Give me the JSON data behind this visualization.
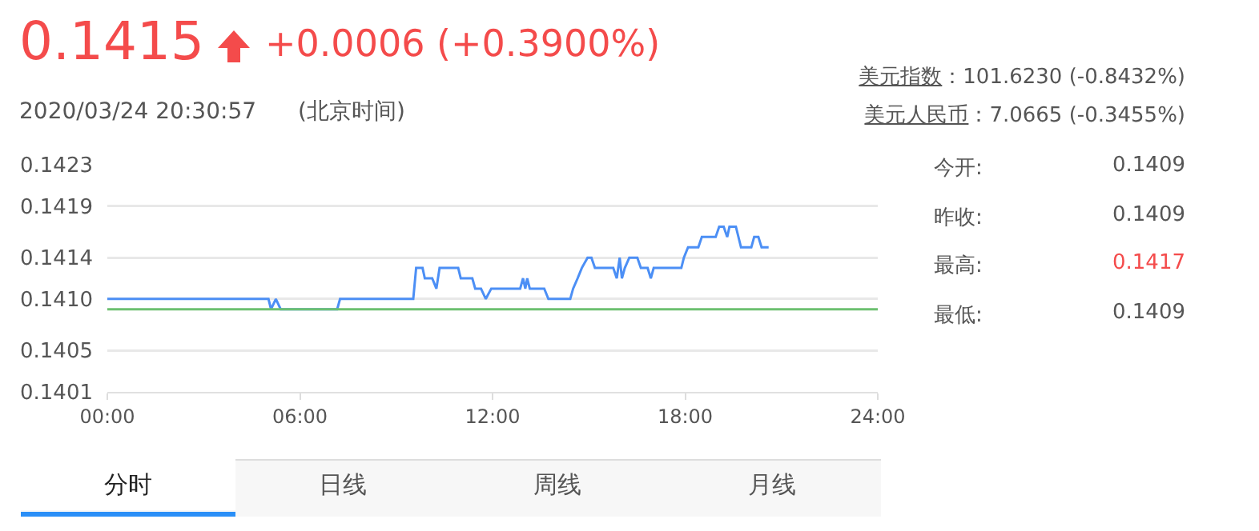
{
  "chart_data": {
    "type": "line",
    "x": [
      0,
      5.02,
      5.1,
      5.25,
      5.4,
      7.16,
      7.25,
      9.53,
      9.62,
      9.82,
      9.89,
      10.12,
      10.25,
      10.35,
      10.93,
      11.01,
      11.37,
      11.46,
      11.64,
      11.79,
      11.96,
      12.86,
      12.95,
      13.02,
      13.08,
      13.16,
      13.61,
      13.74,
      14.42,
      14.51,
      14.65,
      14.78,
      14.96,
      15.08,
      15.19,
      15.76,
      15.87,
      15.96,
      16.03,
      16.12,
      16.26,
      16.51,
      16.62,
      16.83,
      16.93,
      17.02,
      17.88,
      17.96,
      18.09,
      18.41,
      18.52,
      18.95,
      19.06,
      19.2,
      19.31,
      19.38,
      19.58,
      19.74,
      20.06,
      20.15,
      20.28,
      20.38,
      20.6
    ],
    "series": [
      {
        "color": "#4c8ff5",
        "values": [
          0.141,
          0.141,
          0.1409,
          0.141,
          0.1409,
          0.1409,
          0.141,
          0.141,
          0.1413,
          0.1413,
          0.1412,
          0.1412,
          0.1411,
          0.1413,
          0.1413,
          0.1412,
          0.1412,
          0.1411,
          0.1411,
          0.141,
          0.1411,
          0.1411,
          0.1412,
          0.1411,
          0.1412,
          0.1411,
          0.1411,
          0.141,
          0.141,
          0.1411,
          0.1412,
          0.1413,
          0.1414,
          0.1414,
          0.1413,
          0.1413,
          0.1412,
          0.1414,
          0.1412,
          0.1413,
          0.1414,
          0.1414,
          0.1413,
          0.1413,
          0.1412,
          0.1413,
          0.1413,
          0.1414,
          0.1415,
          0.1415,
          0.1416,
          0.1416,
          0.1417,
          0.1417,
          0.1416,
          0.1417,
          0.1417,
          0.1415,
          0.1415,
          0.1416,
          0.1416,
          0.1415,
          0.1415
        ]
      }
    ],
    "xlim": [
      0,
      24
    ],
    "xticks": [
      {
        "value": 0,
        "label": "00:00"
      },
      {
        "value": 6,
        "label": "06:00"
      },
      {
        "value": 12,
        "label": "12:00"
      },
      {
        "value": 18,
        "label": "18:00"
      },
      {
        "value": 24,
        "label": "24:00"
      }
    ],
    "ylim": [
      0.1401,
      0.1423
    ],
    "yticks": [
      0.1401,
      0.1405,
      {
        "value": 0.141,
        "label": "0.1410"
      },
      0.1414,
      0.1419,
      0.1423
    ],
    "grid": "y",
    "ref_lines": [
      {
        "axis": "y",
        "value": 0.1409,
        "color": "#6cc070"
      }
    ],
    "annotations": [
      "0.1415",
      "+0.0006 (+0.3900%)",
      "2020/03/24 20:30:57",
      "(北京时间)",
      "美元指数",
      "：101.6230 (-0.8432%)",
      "美元人民币",
      "：7.0665 (-0.3455%)",
      "今开:",
      "0.1409",
      "昨收:",
      "0.1409",
      "最高:",
      "0.1417",
      "最低:",
      "0.1409",
      "分时",
      "日线",
      "周线",
      "月线"
    ]
  }
}
